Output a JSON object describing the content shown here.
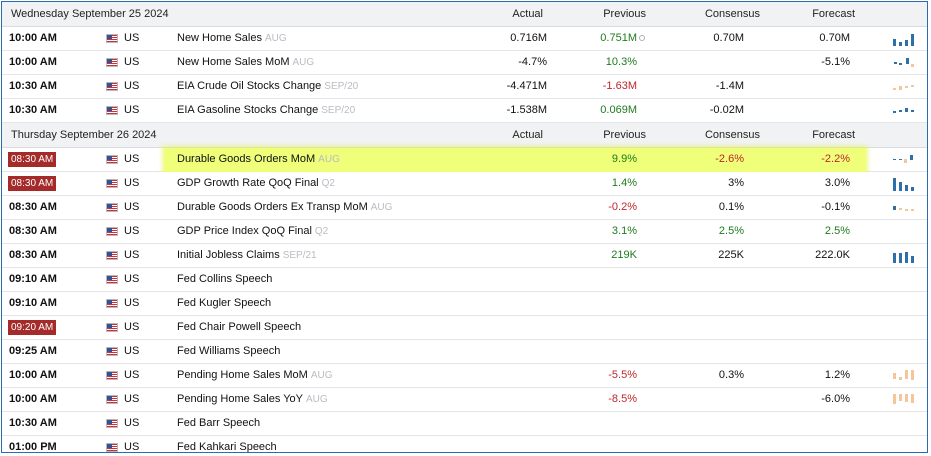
{
  "columns": {
    "actual": "Actual",
    "previous": "Previous",
    "consensus": "Consensus",
    "forecast": "Forecast"
  },
  "sections": [
    {
      "date": "Wednesday September 25 2024",
      "rows": [
        {
          "time": "10:00 AM",
          "badge": false,
          "country": "US",
          "event": "New Home Sales",
          "period": "AUG",
          "actual": "0.716M",
          "previous": "0.751M",
          "previous_color": "green",
          "revised": true,
          "consensus": "0.70M",
          "forecast": "0.70M",
          "spark": "bars-blue-up"
        },
        {
          "time": "10:00 AM",
          "badge": false,
          "country": "US",
          "event": "New Home Sales MoM",
          "period": "AUG",
          "actual": "-4.7%",
          "previous": "10.3%",
          "previous_color": "green",
          "revised": false,
          "consensus": "",
          "forecast": "-5.1%",
          "spark": "mixed-small"
        },
        {
          "time": "10:30 AM",
          "badge": false,
          "country": "US",
          "event": "EIA Crude Oil Stocks Change",
          "period": "SEP/20",
          "actual": "-4.471M",
          "previous": "-1.63M",
          "previous_color": "red",
          "revised": false,
          "consensus": "-1.4M",
          "forecast": "",
          "spark": "mixed-orange"
        },
        {
          "time": "10:30 AM",
          "badge": false,
          "country": "US",
          "event": "EIA Gasoline Stocks Change",
          "period": "SEP/20",
          "actual": "-1.538M",
          "previous": "0.069M",
          "previous_color": "green",
          "revised": false,
          "consensus": "-0.02M",
          "forecast": "",
          "spark": "dash-blue"
        }
      ]
    },
    {
      "date": "Thursday September 26 2024",
      "rows": [
        {
          "time": "08:30 AM",
          "badge": true,
          "country": "US",
          "event": "Durable Goods Orders MoM",
          "period": "AUG",
          "actual": "",
          "previous": "9.9%",
          "previous_color": "green",
          "revised": false,
          "consensus": "-2.6%",
          "consensus_color": "red",
          "forecast": "-2.2%",
          "forecast_color": "red",
          "spark": "mixed-dash",
          "highlight": true
        },
        {
          "time": "08:30 AM",
          "badge": true,
          "country": "US",
          "event": "GDP Growth Rate QoQ Final",
          "period": "Q2",
          "actual": "",
          "previous": "1.4%",
          "previous_color": "green",
          "revised": false,
          "consensus": "3%",
          "forecast": "3.0%",
          "spark": "bars-blue"
        },
        {
          "time": "08:30 AM",
          "badge": false,
          "country": "US",
          "event": "Durable Goods Orders Ex Transp MoM",
          "period": "AUG",
          "actual": "",
          "previous": "-0.2%",
          "previous_color": "red",
          "revised": false,
          "consensus": "0.1%",
          "forecast": "-0.1%",
          "spark": "mixed-small2"
        },
        {
          "time": "08:30 AM",
          "badge": false,
          "country": "US",
          "event": "GDP Price Index QoQ Final",
          "period": "Q2",
          "actual": "",
          "previous": "3.1%",
          "previous_color": "green",
          "revised": false,
          "consensus": "2.5%",
          "consensus_color": "green",
          "forecast": "2.5%",
          "forecast_color": "green",
          "spark": ""
        },
        {
          "time": "08:30 AM",
          "badge": false,
          "country": "US",
          "event": "Initial Jobless Claims",
          "period": "SEP/21",
          "actual": "",
          "previous": "219K",
          "previous_color": "green",
          "revised": false,
          "consensus": "225K",
          "forecast": "222.0K",
          "spark": "bars-blue-flat"
        },
        {
          "time": "09:10 AM",
          "badge": false,
          "country": "US",
          "event": "Fed Collins Speech",
          "period": "",
          "actual": "",
          "previous": "",
          "consensus": "",
          "forecast": "",
          "spark": ""
        },
        {
          "time": "09:10 AM",
          "badge": false,
          "country": "US",
          "event": "Fed Kugler Speech",
          "period": "",
          "actual": "",
          "previous": "",
          "consensus": "",
          "forecast": "",
          "spark": ""
        },
        {
          "time": "09:20 AM",
          "badge": true,
          "country": "US",
          "event": "Fed Chair Powell Speech",
          "period": "",
          "actual": "",
          "previous": "",
          "consensus": "",
          "forecast": "",
          "spark": ""
        },
        {
          "time": "09:25 AM",
          "badge": false,
          "country": "US",
          "event": "Fed Williams Speech",
          "period": "",
          "actual": "",
          "previous": "",
          "consensus": "",
          "forecast": "",
          "spark": ""
        },
        {
          "time": "10:00 AM",
          "badge": false,
          "country": "US",
          "event": "Pending Home Sales MoM",
          "period": "AUG",
          "actual": "",
          "previous": "-5.5%",
          "previous_color": "red",
          "revised": false,
          "consensus": "0.3%",
          "forecast": "1.2%",
          "spark": "orange-bars"
        },
        {
          "time": "10:00 AM",
          "badge": false,
          "country": "US",
          "event": "Pending Home Sales YoY",
          "period": "AUG",
          "actual": "",
          "previous": "-8.5%",
          "previous_color": "red",
          "revised": false,
          "consensus": "",
          "forecast": "-6.0%",
          "spark": "orange-bars-neg"
        },
        {
          "time": "10:30 AM",
          "badge": false,
          "country": "US",
          "event": "Fed Barr Speech",
          "period": "",
          "actual": "",
          "previous": "",
          "consensus": "",
          "forecast": "",
          "spark": ""
        },
        {
          "time": "01:00 PM",
          "badge": false,
          "country": "US",
          "event": "Fed Kahkari Speech",
          "period": "",
          "actual": "",
          "previous": "",
          "consensus": "",
          "forecast": "",
          "spark": ""
        }
      ]
    }
  ],
  "colors": {
    "green": "#1f7a1f",
    "red": "#c0262c",
    "badge": "#a52a2a",
    "highlight": "#efff7a",
    "spark_blue": "#2f6fa8",
    "spark_orange": "#f3c79a"
  }
}
